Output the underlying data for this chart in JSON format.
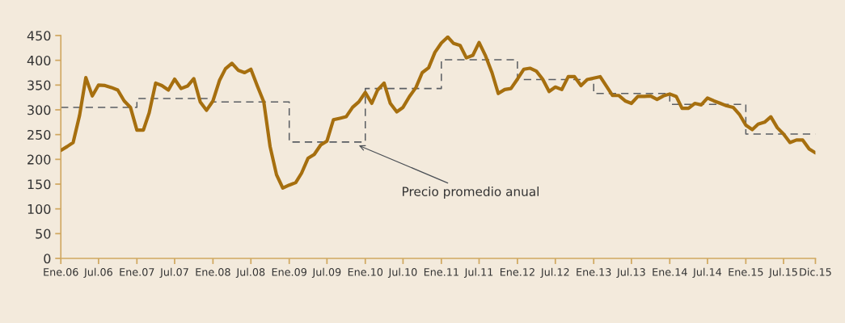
{
  "chart_data": {
    "type": "line",
    "series": [
      {
        "color": "#a66f0f",
        "line_style": "solid",
        "x": [
          "2006-01",
          "2006-02",
          "2006-03",
          "2006-04",
          "2006-05",
          "2006-06",
          "2006-07",
          "2006-08",
          "2006-09",
          "2006-10",
          "2006-11",
          "2006-12",
          "2007-01",
          "2007-02",
          "2007-03",
          "2007-04",
          "2007-05",
          "2007-06",
          "2007-07",
          "2007-08",
          "2007-09",
          "2007-10",
          "2007-11",
          "2007-12",
          "2008-01",
          "2008-02",
          "2008-03",
          "2008-04",
          "2008-05",
          "2008-06",
          "2008-07",
          "2008-08",
          "2008-09",
          "2008-10",
          "2008-11",
          "2008-12",
          "2009-01",
          "2009-02",
          "2009-03",
          "2009-04",
          "2009-05",
          "2009-06",
          "2009-07",
          "2009-08",
          "2009-09",
          "2009-10",
          "2009-11",
          "2009-12",
          "2010-01",
          "2010-02",
          "2010-03",
          "2010-04",
          "2010-05",
          "2010-06",
          "2010-07",
          "2010-08",
          "2010-09",
          "2010-10",
          "2010-11",
          "2010-12",
          "2011-01",
          "2011-02",
          "2011-03",
          "2011-04",
          "2011-05",
          "2011-06",
          "2011-07",
          "2011-08",
          "2011-09",
          "2011-10",
          "2011-11",
          "2011-12",
          "2012-01",
          "2012-02",
          "2012-03",
          "2012-04",
          "2012-05",
          "2012-06",
          "2012-07",
          "2012-08",
          "2012-09",
          "2012-10",
          "2012-11",
          "2012-12",
          "2013-01",
          "2013-02",
          "2013-03",
          "2013-04",
          "2013-05",
          "2013-06",
          "2013-07",
          "2013-08",
          "2013-09",
          "2013-10",
          "2013-11",
          "2013-12",
          "2014-01",
          "2014-02",
          "2014-03",
          "2014-04",
          "2014-05",
          "2014-06",
          "2014-07",
          "2014-08",
          "2014-09",
          "2014-10",
          "2014-11",
          "2014-12",
          "2015-01",
          "2015-02",
          "2015-03",
          "2015-04",
          "2015-05",
          "2015-06",
          "2015-07",
          "2015-08",
          "2015-09",
          "2015-10",
          "2015-11",
          "2015-12"
        ],
        "values": [
          218,
          226,
          234,
          289,
          365,
          328,
          350,
          349,
          345,
          340,
          318,
          305,
          259,
          259,
          294,
          354,
          349,
          340,
          362,
          343,
          348,
          363,
          316,
          299,
          318,
          359,
          383,
          394,
          380,
          375,
          382,
          348,
          316,
          226,
          169,
          142,
          148,
          153,
          172,
          202,
          210,
          229,
          237,
          280,
          283,
          286,
          305,
          316,
          335,
          313,
          340,
          354,
          313,
          296,
          305,
          327,
          345,
          375,
          385,
          416,
          435,
          447,
          434,
          430,
          405,
          410,
          436,
          409,
          375,
          333,
          341,
          343,
          362,
          382,
          384,
          378,
          362,
          337,
          346,
          341,
          367,
          367,
          349,
          361,
          364,
          367,
          349,
          329,
          329,
          318,
          313,
          327,
          327,
          328,
          321,
          328,
          332,
          327,
          303,
          303,
          313,
          310,
          324,
          318,
          313,
          308,
          305,
          291,
          269,
          260,
          271,
          275,
          286,
          264,
          251,
          234,
          239,
          239,
          221,
          213
        ]
      },
      {
        "type": "step",
        "color": "#5a5e63",
        "line_style": "dashed",
        "x": [
          "2006-01",
          "2007-01",
          "2008-01",
          "2009-01",
          "2010-01",
          "2011-01",
          "2012-01",
          "2013-01",
          "2014-01",
          "2015-01",
          "2015-12"
        ],
        "values": [
          305,
          323,
          316,
          235,
          343,
          401,
          361,
          333,
          311,
          251,
          251
        ]
      }
    ],
    "xlim": [
      "2006-01",
      "2015-12"
    ],
    "xticks": [
      {
        "value": "2006-01",
        "label": "Ene.06"
      },
      {
        "value": "2006-07",
        "label": "Jul.06"
      },
      {
        "value": "2007-01",
        "label": "Ene.07"
      },
      {
        "value": "2007-07",
        "label": "Jul.07"
      },
      {
        "value": "2008-01",
        "label": "Ene.08"
      },
      {
        "value": "2008-07",
        "label": "Jul.08"
      },
      {
        "value": "2009-01",
        "label": "Ene.09"
      },
      {
        "value": "2009-07",
        "label": "Jul.09"
      },
      {
        "value": "2010-01",
        "label": "Ene.10"
      },
      {
        "value": "2010-07",
        "label": "Jul.10"
      },
      {
        "value": "2011-01",
        "label": "Ene.11"
      },
      {
        "value": "2011-07",
        "label": "Jul.11"
      },
      {
        "value": "2012-01",
        "label": "Ene.12"
      },
      {
        "value": "2012-07",
        "label": "Jul.12"
      },
      {
        "value": "2013-01",
        "label": "Ene.13"
      },
      {
        "value": "2013-07",
        "label": "Jul.13"
      },
      {
        "value": "2014-01",
        "label": "Ene.14"
      },
      {
        "value": "2014-07",
        "label": "Jul.14"
      },
      {
        "value": "2015-01",
        "label": "Ene.15"
      },
      {
        "value": "2015-07",
        "label": "Jul.15"
      },
      {
        "value": "2015-12",
        "label": "Dic.15"
      }
    ],
    "ylim": [
      0,
      450
    ],
    "yticks": [
      0,
      50,
      100,
      150,
      200,
      250,
      300,
      350,
      400,
      450
    ],
    "grid": false,
    "legend": false,
    "marker": "none",
    "annotations": [
      {
        "text": "Precio promedio anual",
        "x": "2009-12",
        "y": 228
      }
    ]
  }
}
